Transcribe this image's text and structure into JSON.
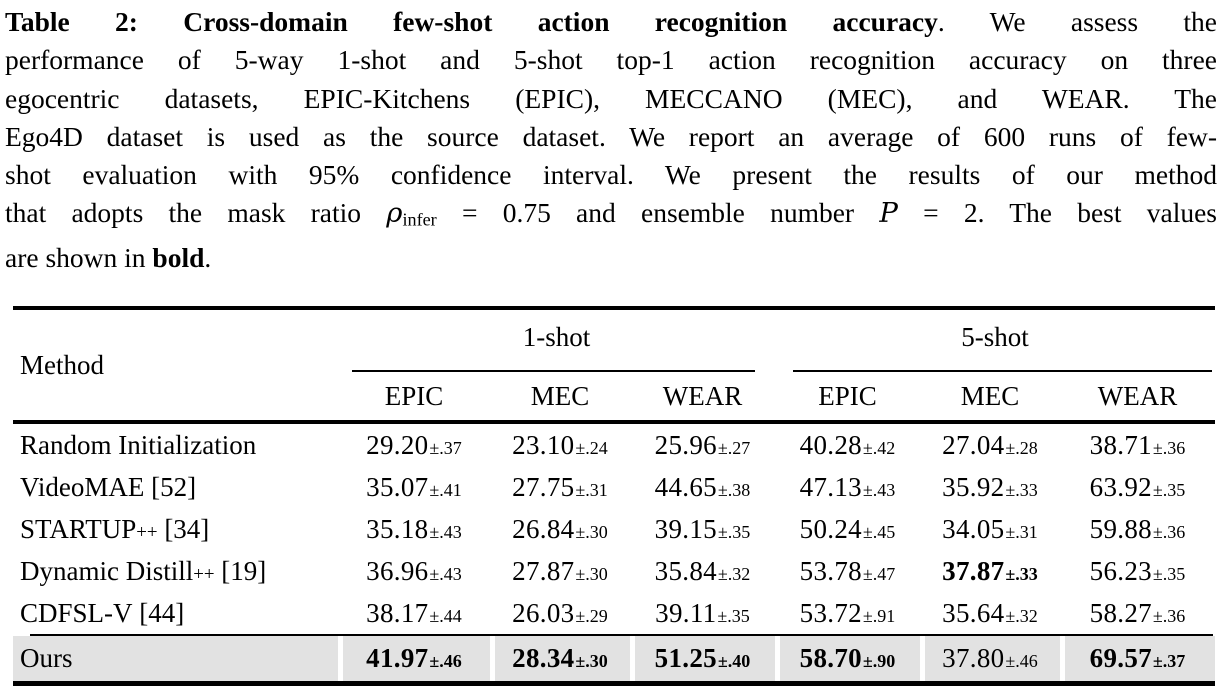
{
  "caption": {
    "lines": [
      [
        {
          "t": "Table 2: Cross-domain few-shot action recognition accuracy",
          "s": "bold"
        },
        {
          "t": ". We assess the",
          "s": "n"
        }
      ],
      [
        {
          "t": "performance of 5-way 1-shot and 5-shot top-1 action recognition accuracy on three",
          "s": "n"
        }
      ],
      [
        {
          "t": "egocentric datasets, EPIC-Kitchens (EPIC), MECCANO (MEC), and WEAR. The",
          "s": "n"
        }
      ],
      [
        {
          "t": "Ego4D dataset is used as the source dataset. We report an average of 600 runs of few-",
          "s": "n"
        }
      ],
      [
        {
          "t": "shot evaluation with 95% confidence interval. We present the results of our method",
          "s": "n"
        }
      ],
      [
        {
          "t": "that adopts the mask ratio ",
          "s": "n"
        },
        {
          "t": "ρ",
          "s": "i"
        },
        {
          "t": "infer",
          "s": "sub"
        },
        {
          "t": " = 0.75 and ensemble number ",
          "s": "n"
        },
        {
          "t": "P",
          "s": "i"
        },
        {
          "t": " = 2. The best values",
          "s": "n"
        }
      ],
      [
        {
          "t": "are shown in ",
          "s": "n"
        },
        {
          "t": "bold",
          "s": "bold"
        },
        {
          "t": ".",
          "s": "n"
        }
      ]
    ]
  },
  "table": {
    "method_header": "Method",
    "groups": [
      {
        "label": "1-shot",
        "columns": [
          "EPIC",
          "MEC",
          "WEAR"
        ]
      },
      {
        "label": "5-shot",
        "columns": [
          "EPIC",
          "MEC",
          "WEAR"
        ]
      }
    ],
    "highlight_color": "#e2e2e2",
    "rows": [
      {
        "method": {
          "name": "Random Initialization",
          "sub": "",
          "ref": ""
        },
        "highlight": false,
        "cells": [
          {
            "v": "29.20",
            "ci": "±.37",
            "b": false
          },
          {
            "v": "23.10",
            "ci": "±.24",
            "b": false
          },
          {
            "v": "25.96",
            "ci": "±.27",
            "b": false
          },
          {
            "v": "40.28",
            "ci": "±.42",
            "b": false
          },
          {
            "v": "27.04",
            "ci": "±.28",
            "b": false
          },
          {
            "v": "38.71",
            "ci": "±.36",
            "b": false
          }
        ]
      },
      {
        "method": {
          "name": "VideoMAE",
          "sub": "",
          "ref": "[52]"
        },
        "highlight": false,
        "cells": [
          {
            "v": "35.07",
            "ci": "±.41",
            "b": false
          },
          {
            "v": "27.75",
            "ci": "±.31",
            "b": false
          },
          {
            "v": "44.65",
            "ci": "±.38",
            "b": false
          },
          {
            "v": "47.13",
            "ci": "±.43",
            "b": false
          },
          {
            "v": "35.92",
            "ci": "±.33",
            "b": false
          },
          {
            "v": "63.92",
            "ci": "±.35",
            "b": false
          }
        ]
      },
      {
        "method": {
          "name": "STARTUP",
          "sub": "++",
          "ref": "[34]"
        },
        "highlight": false,
        "cells": [
          {
            "v": "35.18",
            "ci": "±.43",
            "b": false
          },
          {
            "v": "26.84",
            "ci": "±.30",
            "b": false
          },
          {
            "v": "39.15",
            "ci": "±.35",
            "b": false
          },
          {
            "v": "50.24",
            "ci": "±.45",
            "b": false
          },
          {
            "v": "34.05",
            "ci": "±.31",
            "b": false
          },
          {
            "v": "59.88",
            "ci": "±.36",
            "b": false
          }
        ]
      },
      {
        "method": {
          "name": "Dynamic Distill",
          "sub": "++",
          "ref": "[19]"
        },
        "highlight": false,
        "cells": [
          {
            "v": "36.96",
            "ci": "±.43",
            "b": false
          },
          {
            "v": "27.87",
            "ci": "±.30",
            "b": false
          },
          {
            "v": "35.84",
            "ci": "±.32",
            "b": false
          },
          {
            "v": "53.78",
            "ci": "±.47",
            "b": false
          },
          {
            "v": "37.87",
            "ci": "±.33",
            "b": true
          },
          {
            "v": "56.23",
            "ci": "±.35",
            "b": false
          }
        ]
      },
      {
        "method": {
          "name": "CDFSL-V",
          "sub": "",
          "ref": "[44]"
        },
        "highlight": false,
        "cells": [
          {
            "v": "38.17",
            "ci": "±.44",
            "b": false
          },
          {
            "v": "26.03",
            "ci": "±.29",
            "b": false
          },
          {
            "v": "39.11",
            "ci": "±.35",
            "b": false
          },
          {
            "v": "53.72",
            "ci": "±.91",
            "b": false
          },
          {
            "v": "35.64",
            "ci": "±.32",
            "b": false
          },
          {
            "v": "58.27",
            "ci": "±.36",
            "b": false
          }
        ]
      },
      {
        "method": {
          "name": "Ours",
          "sub": "",
          "ref": ""
        },
        "highlight": true,
        "cells": [
          {
            "v": "41.97",
            "ci": "±.46",
            "b": true
          },
          {
            "v": "28.34",
            "ci": "±.30",
            "b": true
          },
          {
            "v": "51.25",
            "ci": "±.40",
            "b": true
          },
          {
            "v": "58.70",
            "ci": "±.90",
            "b": true
          },
          {
            "v": "37.80",
            "ci": "±.46",
            "b": false
          },
          {
            "v": "69.57",
            "ci": "±.37",
            "b": true
          }
        ]
      }
    ]
  }
}
